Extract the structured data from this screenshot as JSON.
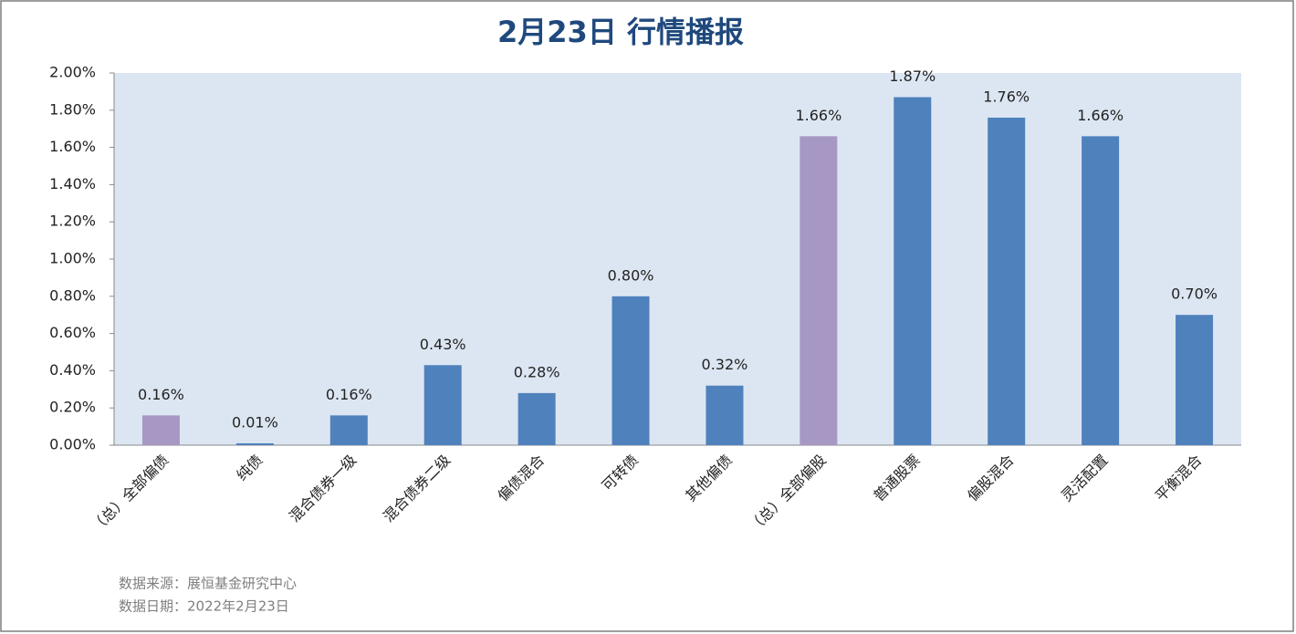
{
  "chart_data": {
    "type": "bar",
    "title": "2月23日  行情播报",
    "categories": [
      "（总）全部偏债",
      "纯债",
      "混合债券一级",
      "混合债券二级",
      "偏债混合",
      "可转债",
      "其他偏债",
      "（总）全部偏股",
      "普通股票",
      "偏股混合",
      "灵活配置",
      "平衡混合"
    ],
    "values": [
      0.16,
      0.01,
      0.16,
      0.43,
      0.28,
      0.8,
      0.32,
      1.66,
      1.87,
      1.76,
      1.66,
      0.7
    ],
    "value_labels": [
      "0.16%",
      "0.01%",
      "0.16%",
      "0.43%",
      "0.28%",
      "0.80%",
      "0.32%",
      "1.66%",
      "1.87%",
      "1.76%",
      "1.66%",
      "0.70%"
    ],
    "colors": [
      "#a797c5",
      "#4f81bd",
      "#4f81bd",
      "#4f81bd",
      "#4f81bd",
      "#4f81bd",
      "#4f81bd",
      "#a797c5",
      "#4f81bd",
      "#4f81bd",
      "#4f81bd",
      "#4f81bd"
    ],
    "ylim": [
      0,
      2
    ],
    "yticks": [
      {
        "value": 0,
        "label": "0.00%"
      },
      {
        "value": 0.2,
        "label": "0.20%"
      },
      {
        "value": 0.4,
        "label": "0.40%"
      },
      {
        "value": 0.6,
        "label": "0.60%"
      },
      {
        "value": 0.8,
        "label": "0.80%"
      },
      {
        "value": 1.0,
        "label": "1.00%"
      },
      {
        "value": 1.2,
        "label": "1.20%"
      },
      {
        "value": 1.4,
        "label": "1.40%"
      },
      {
        "value": 1.6,
        "label": "1.60%"
      },
      {
        "value": 1.8,
        "label": "1.80%"
      },
      {
        "value": 2.0,
        "label": "2.00%"
      }
    ],
    "source": "数据来源：展恒基金研究中心",
    "date": "数据日期：2022年2月23日"
  }
}
